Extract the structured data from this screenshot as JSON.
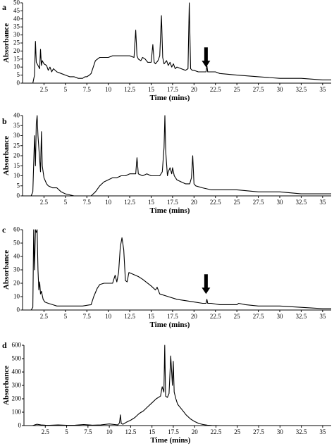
{
  "chart_data": [
    {
      "type": "line",
      "label": "a",
      "xlabel": "Time (mins)",
      "ylabel": "Absorbance",
      "xlim": [
        0,
        36
      ],
      "ylim": [
        0,
        50
      ],
      "xticks": [
        "2.5",
        "5",
        "7.5",
        "10",
        "12.5",
        "15",
        "17.5",
        "20",
        "22.5",
        "25",
        "27.5",
        "30",
        "32.5",
        "35"
      ],
      "xtick_values": [
        2.5,
        5,
        7.5,
        10,
        12.5,
        15,
        17.5,
        20,
        22.5,
        25,
        27.5,
        30,
        32.5,
        35
      ],
      "yticks": [
        0,
        5,
        10,
        15,
        20,
        25,
        30,
        35,
        40,
        45,
        50
      ],
      "arrow_x": 21.4,
      "series": [
        {
          "x": [
            0,
            1.2,
            1.4,
            1.5,
            1.6,
            1.8,
            2.0,
            2.1,
            2.2,
            2.3,
            2.5,
            2.8,
            3.0,
            3.2,
            3.4,
            3.6,
            4.0,
            4.5,
            5.0,
            5.5,
            6.0,
            6.5,
            7.0,
            7.3,
            7.5,
            7.8,
            8.0,
            8.5,
            9.0,
            9.5,
            10.0,
            10.5,
            11.0,
            11.5,
            12.0,
            12.5,
            13.0,
            13.2,
            13.35,
            13.5,
            13.8,
            14.0,
            14.3,
            14.6,
            15.0,
            15.2,
            15.35,
            15.5,
            15.8,
            16.0,
            16.2,
            16.35,
            16.5,
            16.8,
            17.0,
            17.2,
            17.4,
            17.6,
            17.8,
            18.0,
            18.5,
            19.0,
            19.3,
            19.45,
            19.6,
            19.8,
            20.0,
            20.5,
            21.0,
            21.4,
            21.5,
            21.6,
            22.0,
            22.5,
            23.0,
            25.0,
            27.5,
            30.0,
            32.5,
            35.0,
            36.0
          ],
          "y": [
            0,
            0,
            5,
            26,
            13,
            11,
            9,
            21,
            11,
            14,
            12,
            11,
            8,
            10,
            7,
            9,
            7,
            6,
            5,
            4,
            4,
            3,
            3,
            4,
            4,
            5,
            6,
            14,
            16,
            16,
            16,
            17,
            17,
            17,
            17,
            17,
            16,
            33,
            17,
            15,
            14,
            16,
            15,
            13,
            13,
            24,
            13,
            12,
            14,
            17,
            42,
            16,
            12,
            14,
            11,
            13,
            10,
            12,
            9,
            10,
            9,
            8,
            9,
            50,
            9,
            8,
            8,
            7,
            7,
            7,
            11,
            7,
            7,
            7,
            6,
            5,
            4,
            3,
            3,
            2,
            2
          ]
        }
      ]
    },
    {
      "type": "line",
      "label": "b",
      "xlabel": "Time (mins)",
      "ylabel": "Absorbance",
      "xlim": [
        0,
        36
      ],
      "ylim": [
        0,
        40
      ],
      "xticks": [
        "2.5",
        "5",
        "7.5",
        "10",
        "12.5",
        "15",
        "17.5",
        "20",
        "22.5",
        "25",
        "27.5",
        "30",
        "32.5",
        "35"
      ],
      "xtick_values": [
        2.5,
        5,
        7.5,
        10,
        12.5,
        15,
        17.5,
        20,
        22.5,
        25,
        27.5,
        30,
        32.5,
        35
      ],
      "yticks": [
        0,
        5,
        10,
        15,
        20,
        25,
        30,
        35,
        40
      ],
      "series": [
        {
          "x": [
            0,
            1.0,
            1.2,
            1.4,
            1.5,
            1.6,
            1.7,
            1.8,
            2.0,
            2.1,
            2.2,
            2.3,
            2.5,
            2.8,
            3.0,
            3.5,
            4.0,
            4.5,
            5.0,
            6.0,
            7.0,
            7.5,
            8.0,
            8.5,
            9.0,
            9.5,
            10.0,
            10.5,
            11.0,
            11.5,
            12.0,
            12.5,
            13.0,
            13.2,
            13.35,
            13.5,
            14.0,
            14.5,
            15.0,
            15.5,
            16.0,
            16.3,
            16.5,
            16.6,
            16.7,
            16.9,
            17.0,
            17.2,
            17.4,
            17.5,
            17.7,
            18.0,
            18.5,
            19.0,
            19.5,
            19.7,
            19.85,
            20.0,
            20.2,
            21.0,
            22.0,
            25.0,
            27.5,
            30.0,
            32.5,
            35.0,
            36.0
          ],
          "y": [
            0,
            0,
            2,
            30,
            15,
            36,
            40,
            30,
            18,
            12,
            32,
            15,
            9,
            6,
            5,
            4,
            4,
            2,
            1,
            0,
            0,
            0,
            0,
            2,
            5,
            7,
            8,
            9,
            9,
            10,
            10,
            11,
            11,
            11,
            19,
            11,
            10,
            11,
            10,
            10,
            10,
            12,
            24,
            40,
            22,
            10,
            12,
            14,
            11,
            14,
            10,
            8,
            7,
            6,
            6,
            9,
            20,
            6,
            5,
            4,
            3,
            3,
            2,
            2,
            1,
            1,
            1
          ]
        }
      ]
    },
    {
      "type": "line",
      "label": "c",
      "xlabel": "Time (mins)",
      "ylabel": "Absorbance",
      "xlim": [
        0,
        36
      ],
      "ylim": [
        0,
        60
      ],
      "xticks": [
        "2.5",
        "5",
        "7.5",
        "10",
        "12.5",
        "15",
        "17.5",
        "20",
        "22.5",
        "25",
        "27.5",
        "30",
        "32.5",
        "35"
      ],
      "xtick_values": [
        2.5,
        5,
        7.5,
        10,
        12.5,
        15,
        17.5,
        20,
        22.5,
        25,
        27.5,
        30,
        32.5,
        35
      ],
      "yticks": [
        0,
        10,
        20,
        30,
        40,
        50,
        60
      ],
      "arrow_x": 21.4,
      "series": [
        {
          "x": [
            0,
            1.0,
            1.2,
            1.3,
            1.4,
            1.5,
            1.6,
            1.7,
            1.8,
            1.9,
            2.0,
            2.1,
            2.2,
            2.4,
            2.6,
            3.0,
            3.5,
            4.0,
            5.0,
            6.0,
            7.0,
            8.0,
            8.3,
            8.7,
            9.0,
            9.5,
            10.0,
            10.5,
            10.8,
            11.0,
            11.2,
            11.4,
            11.6,
            11.8,
            12.0,
            12.2,
            12.4,
            12.8,
            13.5,
            14.0,
            15.0,
            15.5,
            15.7,
            16.0,
            17.0,
            18.0,
            19.0,
            20.0,
            21.0,
            21.4,
            21.5,
            21.6,
            22.0,
            23.0,
            24.0,
            25.0,
            25.2,
            26.0,
            27.5,
            30.0,
            32.5,
            35.0,
            36.0
          ],
          "y": [
            0,
            0,
            2,
            60,
            30,
            60,
            58,
            60,
            30,
            15,
            21,
            12,
            14,
            8,
            6,
            5,
            4,
            3,
            3,
            3,
            3,
            4,
            10,
            16,
            19,
            20,
            20,
            20,
            26,
            21,
            28,
            47,
            54,
            45,
            22,
            21,
            28,
            27,
            25,
            23,
            18,
            15,
            17,
            12,
            10,
            8,
            7,
            6,
            5,
            5,
            8,
            5,
            5,
            4,
            4,
            4,
            5,
            4,
            3,
            3,
            2,
            1,
            1
          ]
        }
      ]
    },
    {
      "type": "line",
      "label": "d",
      "xlabel": "Time (mins)",
      "ylabel": "Absorbance",
      "xlim": [
        0,
        36
      ],
      "ylim": [
        0,
        600
      ],
      "xticks": [
        "2.5",
        "5",
        "7.5",
        "10",
        "12.5",
        "15",
        "17.5",
        "20",
        "22.5",
        "25",
        "27.5",
        "30",
        "32.5",
        "35"
      ],
      "xtick_values": [
        2.5,
        5,
        7.5,
        10,
        12.5,
        15,
        17.5,
        20,
        22.5,
        25,
        27.5,
        30,
        32.5,
        35
      ],
      "yticks": [
        0,
        100,
        200,
        300,
        400,
        500,
        600
      ],
      "series": [
        {
          "x": [
            0,
            1.0,
            1.5,
            2.0,
            2.5,
            3.0,
            4.0,
            5.0,
            6.0,
            7.0,
            8.0,
            9.0,
            10.0,
            11.0,
            11.2,
            11.3,
            11.4,
            11.6,
            12.0,
            12.5,
            13.0,
            13.5,
            14.0,
            14.5,
            15.0,
            15.5,
            16.0,
            16.2,
            16.4,
            16.5,
            16.6,
            16.8,
            17.0,
            17.2,
            17.4,
            17.5,
            17.6,
            17.8,
            18.0,
            18.5,
            19.0,
            19.5,
            20.0,
            20.5,
            21.0,
            21.5,
            22.0,
            23.0,
            25.0,
            27.5,
            30.0,
            32.5,
            35.0,
            36.0
          ],
          "y": [
            0,
            0,
            10,
            5,
            3,
            2,
            5,
            2,
            3,
            8,
            3,
            5,
            12,
            5,
            20,
            80,
            15,
            10,
            25,
            40,
            60,
            90,
            110,
            140,
            170,
            200,
            220,
            290,
            250,
            600,
            220,
            210,
            240,
            520,
            300,
            480,
            250,
            200,
            160,
            120,
            80,
            50,
            30,
            15,
            8,
            3,
            1,
            0,
            0,
            0,
            0,
            0,
            0,
            0
          ]
        }
      ]
    }
  ]
}
